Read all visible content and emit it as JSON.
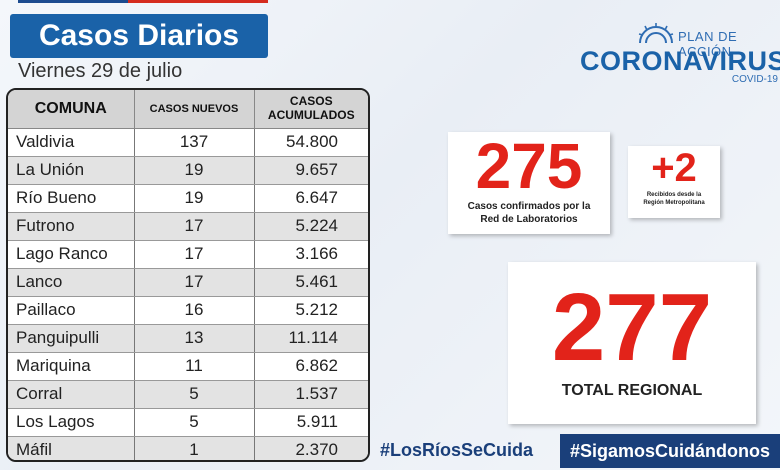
{
  "header": {
    "title": "Casos Diarios",
    "date": "Viernes 29 de julio"
  },
  "logo": {
    "plan": "PLAN DE ACCIÓN",
    "name": "CORONAVIRUS",
    "sub": "COVID-19"
  },
  "table": {
    "headers": {
      "comuna": "COMUNA",
      "nuevos": "CASOS NUEVOS",
      "acumulados_1": "CASOS",
      "acumulados_2": "ACUMULADOS"
    },
    "rows": [
      {
        "comuna": "Valdivia",
        "nuevos": "137",
        "acumulados": "54.800"
      },
      {
        "comuna": "La Unión",
        "nuevos": "19",
        "acumulados": "9.657"
      },
      {
        "comuna": "Río Bueno",
        "nuevos": "19",
        "acumulados": "6.647"
      },
      {
        "comuna": "Futrono",
        "nuevos": "17",
        "acumulados": "5.224"
      },
      {
        "comuna": "Lago Ranco",
        "nuevos": "17",
        "acumulados": "3.166"
      },
      {
        "comuna": "Lanco",
        "nuevos": "17",
        "acumulados": "5.461"
      },
      {
        "comuna": "Paillaco",
        "nuevos": "16",
        "acumulados": "5.212"
      },
      {
        "comuna": "Panguipulli",
        "nuevos": "13",
        "acumulados": "11.114"
      },
      {
        "comuna": "Mariquina",
        "nuevos": "11",
        "acumulados": "6.862"
      },
      {
        "comuna": "Corral",
        "nuevos": "5",
        "acumulados": "1.537"
      },
      {
        "comuna": "Los Lagos",
        "nuevos": "5",
        "acumulados": "5.911"
      },
      {
        "comuna": "Máfil",
        "nuevos": "1",
        "acumulados": "2.370"
      }
    ]
  },
  "confirmed": {
    "value": "275",
    "label_1": "Casos confirmados por la",
    "label_2": "Red de Laboratorios"
  },
  "metropolitana": {
    "value": "+2",
    "label_1": "Recibidos desde la",
    "label_2": "Región Metropolitana"
  },
  "total": {
    "value": "277",
    "label": "TOTAL REGIONAL"
  },
  "hashtags": {
    "left": "#LosRíosSeCuida",
    "right": "#SigamosCuidándonos"
  },
  "colors": {
    "brand_blue": "#1a62a8",
    "navy": "#1a3f7a",
    "accent_red": "#e2231a"
  }
}
